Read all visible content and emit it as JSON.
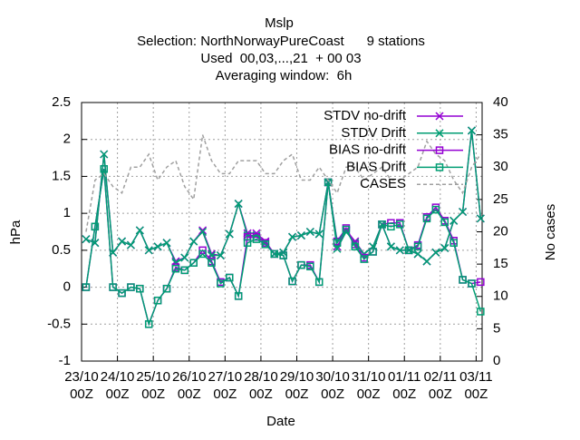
{
  "chart_data": {
    "type": "line",
    "title": "Mslp",
    "subtitle": [
      "Selection: NorthNorwayPureCoast      9 stations",
      "Used  00,03,...,21  + 00 03",
      "Averaging window:  6h"
    ],
    "xlabel": "Date",
    "ylabel": "hPa",
    "y2label": "No cases",
    "x": [
      3,
      9,
      15,
      21,
      27,
      33,
      39,
      45,
      51,
      57,
      63,
      69,
      75,
      81,
      87,
      93,
      99,
      105,
      111,
      117,
      123,
      129,
      135,
      141,
      147,
      153,
      159,
      165,
      171,
      177,
      183,
      189,
      195,
      201,
      207,
      213,
      219,
      225,
      231,
      237,
      243,
      249,
      255,
      261,
      267
    ],
    "xlim": [
      0,
      268
    ],
    "xticks": [
      {
        "value": 0,
        "label": "23/10\n00Z"
      },
      {
        "value": 24,
        "label": "24/10\n00Z"
      },
      {
        "value": 48,
        "label": "25/10\n00Z"
      },
      {
        "value": 72,
        "label": "26/10\n00Z"
      },
      {
        "value": 96,
        "label": "27/10\n00Z"
      },
      {
        "value": 120,
        "label": "28/10\n00Z"
      },
      {
        "value": 144,
        "label": "29/10\n00Z"
      },
      {
        "value": 168,
        "label": "30/10\n00Z"
      },
      {
        "value": 192,
        "label": "31/10\n00Z"
      },
      {
        "value": 216,
        "label": "01/11\n00Z"
      },
      {
        "value": 240,
        "label": "02/11\n00Z"
      },
      {
        "value": 264,
        "label": "03/11\n00Z"
      }
    ],
    "ylim": [
      -1,
      2.5
    ],
    "yticks": [
      -1,
      -0.5,
      0,
      0.5,
      1,
      1.5,
      2,
      2.5
    ],
    "y2lim": [
      0,
      40
    ],
    "y2ticks": [
      0,
      5,
      10,
      15,
      20,
      25,
      30,
      35,
      40
    ],
    "grid": true,
    "legend": "top-right",
    "series": [
      {
        "name": "STDV no-drift",
        "color": "#9400d3",
        "marker": "cross",
        "values": [
          0.65,
          0.6,
          1.8,
          0.47,
          0.62,
          0.57,
          0.77,
          0.5,
          0.55,
          0.6,
          0.35,
          0.4,
          0.62,
          0.77,
          0.45,
          0.43,
          0.72,
          1.13,
          0.73,
          0.73,
          0.62,
          0.45,
          0.47,
          0.68,
          0.7,
          0.75,
          0.72,
          1.42,
          0.55,
          0.77,
          0.62,
          0.45,
          0.55,
          0.85,
          0.55,
          0.5,
          0.5,
          0.45,
          0.35,
          0.47,
          0.53,
          0.9,
          1.02,
          2.12,
          0.93
        ]
      },
      {
        "name": "STDV Drift",
        "color": "#009e73",
        "marker": "cross",
        "values": [
          0.65,
          0.6,
          1.8,
          0.47,
          0.62,
          0.57,
          0.77,
          0.5,
          0.55,
          0.6,
          0.33,
          0.4,
          0.62,
          0.75,
          0.43,
          0.43,
          0.72,
          1.13,
          0.7,
          0.7,
          0.6,
          0.45,
          0.47,
          0.68,
          0.7,
          0.75,
          0.72,
          1.42,
          0.52,
          0.75,
          0.6,
          0.45,
          0.55,
          0.85,
          0.55,
          0.5,
          0.5,
          0.45,
          0.35,
          0.47,
          0.53,
          0.9,
          1.02,
          2.12,
          0.93
        ]
      },
      {
        "name": "BIAS no-drift",
        "color": "#9400d3",
        "marker": "square",
        "values": [
          0,
          0.82,
          1.6,
          0,
          -0.08,
          0,
          -0.02,
          -0.5,
          -0.18,
          -0.02,
          0.27,
          0.23,
          0.33,
          0.5,
          0.35,
          0.07,
          0.13,
          -0.12,
          0.68,
          0.68,
          0.6,
          0.45,
          0.43,
          0.08,
          0.3,
          0.3,
          0.07,
          1.42,
          0.62,
          0.8,
          0.58,
          0.4,
          0.48,
          0.85,
          0.87,
          0.87,
          0.5,
          0.57,
          0.95,
          1.08,
          0.9,
          0.63,
          0.1,
          0.05,
          0.07
        ]
      },
      {
        "name": "BIAS Drift",
        "color": "#009e73",
        "marker": "square",
        "values": [
          0,
          0.82,
          1.6,
          0,
          -0.08,
          0,
          -0.02,
          -0.5,
          -0.18,
          -0.02,
          0.25,
          0.23,
          0.33,
          0.45,
          0.33,
          0.05,
          0.13,
          -0.12,
          0.6,
          0.65,
          0.58,
          0.45,
          0.43,
          0.08,
          0.3,
          0.28,
          0.07,
          1.42,
          0.6,
          0.78,
          0.55,
          0.38,
          0.48,
          0.85,
          0.82,
          0.85,
          0.5,
          0.55,
          0.93,
          1.05,
          0.88,
          0.6,
          0.1,
          0.05,
          -0.33
        ]
      },
      {
        "name": "CASES",
        "color": "#a0a0a0",
        "axis": "y2",
        "dashed": true,
        "values": [
          20,
          28,
          29,
          27,
          26,
          30,
          30,
          32,
          28,
          30,
          31,
          27,
          25,
          35,
          31,
          29,
          29,
          31,
          31,
          31,
          29,
          29,
          31,
          32,
          28,
          28,
          30,
          28,
          26,
          30,
          30,
          28,
          29,
          30,
          28,
          28,
          29,
          30,
          34,
          32,
          31,
          28,
          26,
          30,
          32
        ]
      }
    ]
  }
}
